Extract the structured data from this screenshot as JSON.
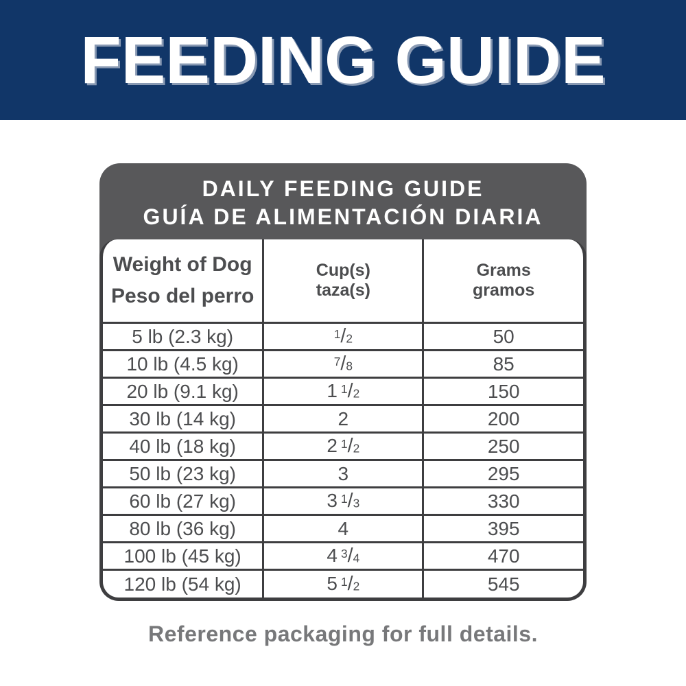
{
  "banner": {
    "title": "FEEDING GUIDE"
  },
  "card": {
    "header": {
      "title_en": "DAILY FEEDING GUIDE",
      "title_es": "GUÍA DE ALIMENTACIÓN DIARIA"
    },
    "columns": [
      {
        "line1": "Weight of Dog",
        "line2": "Peso del perro"
      },
      {
        "line1": "Cup(s)",
        "line2": "taza(s)"
      },
      {
        "line1": "Grams",
        "line2": "gramos"
      }
    ],
    "rows": [
      {
        "weight": "5 lb (2.3 kg)",
        "cups": {
          "whole": "",
          "num": "1",
          "den": "2"
        },
        "grams": "50"
      },
      {
        "weight": "10 lb (4.5 kg)",
        "cups": {
          "whole": "",
          "num": "7",
          "den": "8"
        },
        "grams": "85"
      },
      {
        "weight": "20 lb (9.1 kg)",
        "cups": {
          "whole": "1",
          "num": "1",
          "den": "2"
        },
        "grams": "150"
      },
      {
        "weight": "30 lb (14 kg)",
        "cups": {
          "whole": "2",
          "num": "",
          "den": ""
        },
        "grams": "200"
      },
      {
        "weight": "40 lb (18 kg)",
        "cups": {
          "whole": "2",
          "num": "1",
          "den": "2"
        },
        "grams": "250"
      },
      {
        "weight": "50 lb (23 kg)",
        "cups": {
          "whole": "3",
          "num": "",
          "den": ""
        },
        "grams": "295"
      },
      {
        "weight": "60 lb (27 kg)",
        "cups": {
          "whole": "3",
          "num": "1",
          "den": "3"
        },
        "grams": "330"
      },
      {
        "weight": "80 lb (36 kg)",
        "cups": {
          "whole": "4",
          "num": "",
          "den": ""
        },
        "grams": "395"
      },
      {
        "weight": "100 lb (45 kg)",
        "cups": {
          "whole": "4",
          "num": "3",
          "den": "4"
        },
        "grams": "470"
      },
      {
        "weight": "120 lb (54 kg)",
        "cups": {
          "whole": "5",
          "num": "1",
          "den": "2"
        },
        "grams": "545"
      }
    ]
  },
  "footer": {
    "note": "Reference packaging for full details."
  },
  "colors": {
    "banner_blue": "#113668",
    "header_gray": "#58585a",
    "border_dark": "#3e3e40",
    "cell_text": "#4c4d4f",
    "footer_gray": "#77787a"
  }
}
